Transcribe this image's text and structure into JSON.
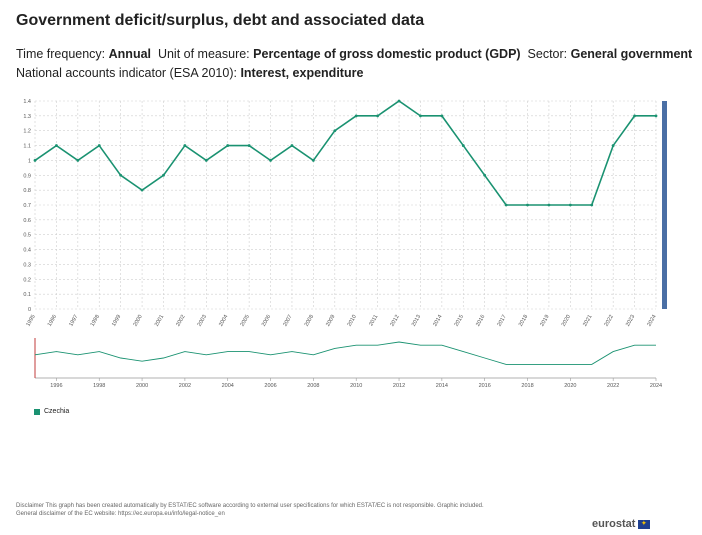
{
  "title": "Government deficit/surplus, debt and associated data",
  "meta": {
    "freq_label": "Time frequency:",
    "freq_value": "Annual",
    "unit_label": "Unit of measure:",
    "unit_value": "Percentage of gross domestic product (GDP)",
    "sector_label": "Sector:",
    "sector_value": "General government",
    "indicator_label": "National accounts indicator (ESA 2010):",
    "indicator_value": "Interest, expenditure"
  },
  "colors": {
    "series": "#1a9271",
    "grid": "#cfcfcf",
    "scrollbar": "#4a6fa5",
    "axis": "#444444"
  },
  "chart_data": {
    "type": "line",
    "title": "",
    "xlabel": "",
    "ylabel": "",
    "ylim": [
      0,
      1.4
    ],
    "yticks": [
      0,
      0.1,
      0.2,
      0.3,
      0.4,
      0.5,
      0.6,
      0.7,
      0.8,
      0.9,
      1.0,
      1.1,
      1.2,
      1.3,
      1.4
    ],
    "x": [
      "1995",
      "1996",
      "1997",
      "1998",
      "1999",
      "2000",
      "2001",
      "2002",
      "2003",
      "2004",
      "2005",
      "2006",
      "2007",
      "2008",
      "2009",
      "2010",
      "2011",
      "2012",
      "2013",
      "2014",
      "2015",
      "2016",
      "2017",
      "2018",
      "2019",
      "2020",
      "2021",
      "2022",
      "2023",
      "2024"
    ],
    "series": [
      {
        "name": "Czechia",
        "values": [
          1.0,
          1.1,
          1.0,
          1.1,
          0.9,
          0.8,
          0.9,
          1.1,
          1.0,
          1.1,
          1.1,
          1.0,
          1.1,
          1.0,
          1.2,
          1.3,
          1.3,
          1.4,
          1.3,
          1.3,
          1.1,
          0.9,
          0.7,
          0.7,
          0.7,
          0.7,
          0.7,
          1.1,
          1.3,
          1.3
        ]
      }
    ],
    "grid": true,
    "legend": "bottom-left",
    "navigator_ticks": [
      "1996",
      "1998",
      "2000",
      "2002",
      "2004",
      "2006",
      "2008",
      "2010",
      "2012",
      "2014",
      "2016",
      "2018",
      "2020",
      "2022",
      "2024"
    ]
  },
  "legend": {
    "label": "Czechia"
  },
  "disclaimer": {
    "line1": "Disclaimer This graph has been created automatically by ESTAT/EC software according to external user specifications for which ESTAT/EC is not responsible. Graphic included.",
    "line2": "General disclaimer of the EC website: https://ec.europa.eu/info/legal-notice_en"
  },
  "logo": "eurostat"
}
